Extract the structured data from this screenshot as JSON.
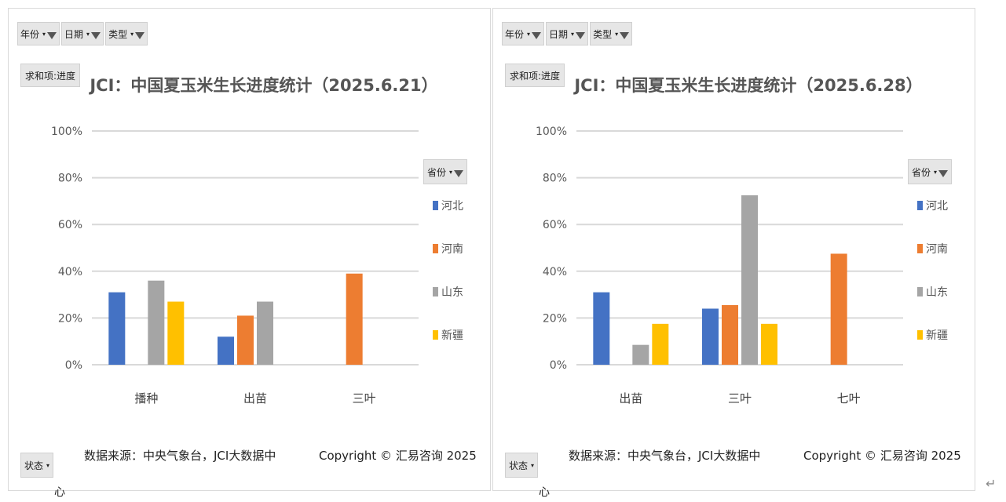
{
  "filters": [
    {
      "label": "年份"
    },
    {
      "label": "日期"
    },
    {
      "label": "类型"
    }
  ],
  "sum_label": "求和项:进度",
  "state_label": "状态",
  "legend_title": "省份",
  "cut_char": "心",
  "return_mark": "↵",
  "source_text": "数据来源：中央气象台，JCI大数据中",
  "copyright_text": "Copyright © 汇易咨询 2025",
  "colors": {
    "河北": "#4472C4",
    "河南": "#ED7D31",
    "山东": "#A5A5A5",
    "新疆": "#FFC000"
  },
  "chart_data": [
    {
      "type": "bar",
      "title": "JCI：中国夏玉米生长进度统计（2025.6.21）",
      "categories": [
        "播种",
        "出苗",
        "三叶"
      ],
      "ylim": [
        0,
        100
      ],
      "yticks": [
        "0%",
        "20%",
        "40%",
        "60%",
        "80%",
        "100%"
      ],
      "grid": true,
      "legend_position": "right",
      "series": [
        {
          "name": "河北",
          "values": [
            31,
            12,
            null
          ]
        },
        {
          "name": "河南",
          "values": [
            null,
            21,
            39
          ]
        },
        {
          "name": "山东",
          "values": [
            36,
            27,
            null
          ]
        },
        {
          "name": "新疆",
          "values": [
            27,
            null,
            null
          ]
        }
      ]
    },
    {
      "type": "bar",
      "title": "JCI：中国夏玉米生长进度统计（2025.6.28）",
      "categories": [
        "出苗",
        "三叶",
        "七叶"
      ],
      "ylim": [
        0,
        100
      ],
      "yticks": [
        "0%",
        "20%",
        "40%",
        "60%",
        "80%",
        "100%"
      ],
      "grid": true,
      "legend_position": "right",
      "series": [
        {
          "name": "河北",
          "values": [
            31,
            24,
            null
          ]
        },
        {
          "name": "河南",
          "values": [
            null,
            25.5,
            47.5
          ]
        },
        {
          "name": "山东",
          "values": [
            8.5,
            72.5,
            null
          ]
        },
        {
          "name": "新疆",
          "values": [
            17.5,
            17.5,
            null
          ]
        }
      ]
    }
  ]
}
